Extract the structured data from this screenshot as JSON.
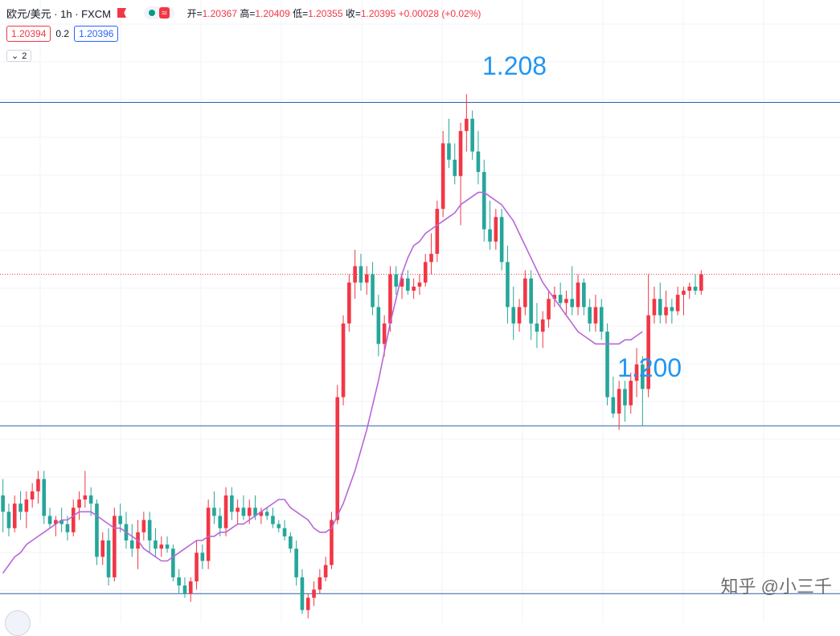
{
  "header": {
    "symbol": "欧元/美元 · 1h · FXCM",
    "pill_icons": [
      "status-dot-icon",
      "wave-icon"
    ],
    "ohlc": {
      "open_label": "开=",
      "open": "1.20367",
      "high_label": "高=",
      "high": "1.20409",
      "low_label": "低=",
      "low": "1.20355",
      "close_label": "收=",
      "close": "1.20395",
      "change": "+0.00028 (+0.02%)"
    }
  },
  "quote": {
    "bid": "1.20394",
    "spread": "0.2",
    "ask": "1.20396"
  },
  "collapse": {
    "label": "2",
    "icon": "chevron-down-icon"
  },
  "annotations": {
    "upper": "1.208",
    "lower": "1.200"
  },
  "watermark": "知乎 @小三千",
  "colors": {
    "up": "#f23645",
    "down": "#26a69a",
    "ma": "#b867d6",
    "hline": "#2962a8",
    "label": "#2196f3",
    "price_line": "#f23645"
  },
  "chart_data": {
    "type": "candlestick",
    "title": "欧元/美元 · 1h · FXCM",
    "ylim": [
      1.1955,
      1.2107
    ],
    "horizontal_lines": [
      1.2082,
      1.2003,
      1.1962
    ],
    "current_price_line": 1.204,
    "candles": [
      [
        1.1986,
        1.199,
        1.1977,
        1.1982
      ],
      [
        1.1982,
        1.1984,
        1.1976,
        1.1978
      ],
      [
        1.1978,
        1.1986,
        1.1977,
        1.1984
      ],
      [
        1.1984,
        1.1987,
        1.198,
        1.1982
      ],
      [
        1.1982,
        1.1987,
        1.1978,
        1.1985
      ],
      [
        1.1985,
        1.1989,
        1.1983,
        1.1987
      ],
      [
        1.1987,
        1.1992,
        1.1984,
        1.199
      ],
      [
        1.199,
        1.1992,
        1.1979,
        1.1981
      ],
      [
        1.1981,
        1.1983,
        1.1978,
        1.1979
      ],
      [
        1.1979,
        1.1981,
        1.1976,
        1.198
      ],
      [
        1.198,
        1.1983,
        1.1977,
        1.1979
      ],
      [
        1.1979,
        1.1981,
        1.1975,
        1.1977
      ],
      [
        1.1977,
        1.1985,
        1.1976,
        1.1983
      ],
      [
        1.1983,
        1.1987,
        1.198,
        1.1985
      ],
      [
        1.1985,
        1.1992,
        1.1983,
        1.1986
      ],
      [
        1.1986,
        1.1988,
        1.1981,
        1.1984
      ],
      [
        1.1984,
        1.1985,
        1.1969,
        1.1971
      ],
      [
        1.1971,
        1.1977,
        1.1969,
        1.1975
      ],
      [
        1.1975,
        1.1978,
        1.1964,
        1.1966
      ],
      [
        1.1966,
        1.1983,
        1.1965,
        1.1981
      ],
      [
        1.1981,
        1.1984,
        1.1977,
        1.1979
      ],
      [
        1.1979,
        1.1982,
        1.1973,
        1.1975
      ],
      [
        1.1975,
        1.1979,
        1.1971,
        1.1973
      ],
      [
        1.1973,
        1.198,
        1.1968,
        1.1977
      ],
      [
        1.1977,
        1.1982,
        1.1975,
        1.198
      ],
      [
        1.198,
        1.1982,
        1.1972,
        1.1975
      ],
      [
        1.1975,
        1.1978,
        1.1971,
        1.1973
      ],
      [
        1.1973,
        1.1976,
        1.1971,
        1.1974
      ],
      [
        1.1974,
        1.1976,
        1.1972,
        1.1973
      ],
      [
        1.1973,
        1.1974,
        1.1965,
        1.1966
      ],
      [
        1.1966,
        1.1968,
        1.1962,
        1.1964
      ],
      [
        1.1964,
        1.1966,
        1.1961,
        1.1962
      ],
      [
        1.1962,
        1.1966,
        1.196,
        1.1965
      ],
      [
        1.1965,
        1.1975,
        1.1963,
        1.1972
      ],
      [
        1.1972,
        1.1974,
        1.1968,
        1.197
      ],
      [
        1.197,
        1.1985,
        1.1968,
        1.1983
      ],
      [
        1.1983,
        1.1987,
        1.1979,
        1.1981
      ],
      [
        1.1981,
        1.1983,
        1.1976,
        1.1978
      ],
      [
        1.1978,
        1.1988,
        1.1976,
        1.1986
      ],
      [
        1.1986,
        1.1988,
        1.198,
        1.1982
      ],
      [
        1.1982,
        1.1985,
        1.1979,
        1.1983
      ],
      [
        1.1983,
        1.1986,
        1.198,
        1.1981
      ],
      [
        1.1981,
        1.1985,
        1.1979,
        1.1983
      ],
      [
        1.1983,
        1.1986,
        1.198,
        1.1981
      ],
      [
        1.1981,
        1.1983,
        1.1979,
        1.1982
      ],
      [
        1.1982,
        1.1983,
        1.198,
        1.1981
      ],
      [
        1.1981,
        1.1983,
        1.1978,
        1.1979
      ],
      [
        1.1979,
        1.198,
        1.1977,
        1.1978
      ],
      [
        1.1978,
        1.198,
        1.1975,
        1.1976
      ],
      [
        1.1976,
        1.1977,
        1.1972,
        1.1973
      ],
      [
        1.1973,
        1.1975,
        1.1964,
        1.1966
      ],
      [
        1.1966,
        1.1968,
        1.1957,
        1.1958
      ],
      [
        1.1958,
        1.1962,
        1.1956,
        1.1961
      ],
      [
        1.1961,
        1.1965,
        1.1959,
        1.1963
      ],
      [
        1.1963,
        1.1968,
        1.1962,
        1.1966
      ],
      [
        1.1966,
        1.1971,
        1.1965,
        1.1969
      ],
      [
        1.1969,
        1.1982,
        1.1968,
        1.198
      ],
      [
        1.198,
        1.2013,
        1.1979,
        1.201
      ],
      [
        1.201,
        1.203,
        1.2008,
        1.2028
      ],
      [
        1.2028,
        1.204,
        1.2026,
        1.2038
      ],
      [
        1.2038,
        1.2046,
        1.2034,
        1.2042
      ],
      [
        1.2042,
        1.2045,
        1.2036,
        1.2038
      ],
      [
        1.2038,
        1.2042,
        1.2035,
        1.204
      ],
      [
        1.204,
        1.2043,
        1.203,
        1.2032
      ],
      [
        1.2032,
        1.2035,
        1.202,
        1.2023
      ],
      [
        1.2023,
        1.203,
        1.202,
        1.2028
      ],
      [
        1.2028,
        1.2042,
        1.2026,
        1.204
      ],
      [
        1.204,
        1.2042,
        1.2035,
        1.2037
      ],
      [
        1.2037,
        1.204,
        1.2034,
        1.2039
      ],
      [
        1.2039,
        1.2041,
        1.2035,
        1.2036
      ],
      [
        1.2036,
        1.2039,
        1.2034,
        1.2037
      ],
      [
        1.2037,
        1.204,
        1.2035,
        1.2038
      ],
      [
        1.2038,
        1.2045,
        1.2037,
        1.2043
      ],
      [
        1.2043,
        1.205,
        1.204,
        1.2045
      ],
      [
        1.2045,
        1.2058,
        1.2043,
        1.2056
      ],
      [
        1.2056,
        1.2075,
        1.2054,
        1.2072
      ],
      [
        1.2072,
        1.2078,
        1.2066,
        1.2068
      ],
      [
        1.2068,
        1.2072,
        1.2062,
        1.2064
      ],
      [
        1.2064,
        1.2077,
        1.2052,
        1.2075
      ],
      [
        1.2075,
        1.2084,
        1.207,
        1.2078
      ],
      [
        1.2078,
        1.208,
        1.2068,
        1.207
      ],
      [
        1.207,
        1.2075,
        1.2062,
        1.2065
      ],
      [
        1.2065,
        1.2068,
        1.2048,
        1.2051
      ],
      [
        1.2051,
        1.2058,
        1.2046,
        1.2048
      ],
      [
        1.2048,
        1.2056,
        1.2046,
        1.2054
      ],
      [
        1.2054,
        1.2056,
        1.2041,
        1.2043
      ],
      [
        1.2043,
        1.2047,
        1.2028,
        1.2032
      ],
      [
        1.2032,
        1.2037,
        1.2024,
        1.2028
      ],
      [
        1.2028,
        1.2034,
        1.2026,
        1.2032
      ],
      [
        1.2032,
        1.2041,
        1.203,
        1.2039
      ],
      [
        1.2039,
        1.2041,
        1.2024,
        1.2028
      ],
      [
        1.2028,
        1.2033,
        1.2022,
        1.2026
      ],
      [
        1.2026,
        1.2031,
        1.2022,
        1.2029
      ],
      [
        1.2029,
        1.2036,
        1.2027,
        1.2034
      ],
      [
        1.2034,
        1.2037,
        1.2032,
        1.2035
      ],
      [
        1.2035,
        1.2038,
        1.2032,
        1.2033
      ],
      [
        1.2033,
        1.2036,
        1.203,
        1.2034
      ],
      [
        1.2034,
        1.2042,
        1.203,
        1.2032
      ],
      [
        1.2032,
        1.204,
        1.203,
        1.2038
      ],
      [
        1.2038,
        1.2039,
        1.203,
        1.2032
      ],
      [
        1.2032,
        1.2034,
        1.2026,
        1.2028
      ],
      [
        1.2028,
        1.2035,
        1.2026,
        1.2032
      ],
      [
        1.2032,
        1.2034,
        1.2024,
        1.2026
      ],
      [
        1.2026,
        1.2028,
        1.2008,
        1.201
      ],
      [
        1.201,
        1.2015,
        1.2005,
        1.2006
      ],
      [
        1.2006,
        1.2014,
        1.2002,
        1.2012
      ],
      [
        1.2012,
        1.2014,
        1.2004,
        1.2008
      ],
      [
        1.2008,
        1.2016,
        1.2006,
        1.2014
      ],
      [
        1.2014,
        1.2022,
        1.201,
        1.2018
      ],
      [
        1.2018,
        1.202,
        1.2003,
        1.2012
      ],
      [
        1.2012,
        1.204,
        1.201,
        1.203
      ],
      [
        1.203,
        1.2037,
        1.2028,
        1.2034
      ],
      [
        1.2034,
        1.2038,
        1.2028,
        1.203
      ],
      [
        1.203,
        1.2036,
        1.2028,
        1.2032
      ],
      [
        1.2032,
        1.2034,
        1.2028,
        1.2031
      ],
      [
        1.2031,
        1.2037,
        1.203,
        1.2035
      ],
      [
        1.2035,
        1.2037,
        1.203,
        1.2036
      ],
      [
        1.2036,
        1.2038,
        1.2034,
        1.2037
      ],
      [
        1.2037,
        1.204,
        1.2035,
        1.2036
      ],
      [
        1.2036,
        1.2041,
        1.2035,
        1.204
      ]
    ],
    "ma_line": [
      1.1967,
      1.1969,
      1.1971,
      1.1972,
      1.1974,
      1.1975,
      1.1976,
      1.1977,
      1.1978,
      1.1979,
      1.198,
      1.198,
      1.1981,
      1.1982,
      1.1982,
      1.1982,
      1.1981,
      1.198,
      1.1979,
      1.1978,
      1.1978,
      1.1977,
      1.1976,
      1.1975,
      1.1973,
      1.1972,
      1.1971,
      1.197,
      1.197,
      1.1971,
      1.1972,
      1.1973,
      1.1974,
      1.1975,
      1.1975,
      1.1976,
      1.1976,
      1.1977,
      1.1977,
      1.1978,
      1.1979,
      1.1979,
      1.198,
      1.1981,
      1.1982,
      1.1983,
      1.1984,
      1.1985,
      1.1985,
      1.1983,
      1.1982,
      1.1981,
      1.198,
      1.1978,
      1.1977,
      1.1977,
      1.1978,
      1.1981,
      1.1984,
      1.1988,
      1.1992,
      1.1997,
      1.2002,
      1.2008,
      1.2014,
      1.2021,
      1.2028,
      1.2034,
      1.204,
      1.2044,
      1.2047,
      1.2048,
      1.205,
      1.2051,
      1.2052,
      1.2053,
      1.2054,
      1.2055,
      1.2057,
      1.2058,
      1.2059,
      1.206,
      1.206,
      1.2059,
      1.2058,
      1.2057,
      1.2055,
      1.2053,
      1.205,
      1.2047,
      1.2044,
      1.2041,
      1.2038,
      1.2036,
      1.2034,
      1.2032,
      1.203,
      1.2028,
      1.2026,
      1.2025,
      1.2024,
      1.2023,
      1.2023,
      1.2023,
      1.2023,
      1.2023,
      1.2024,
      1.2024,
      1.2025,
      1.2026
    ]
  }
}
